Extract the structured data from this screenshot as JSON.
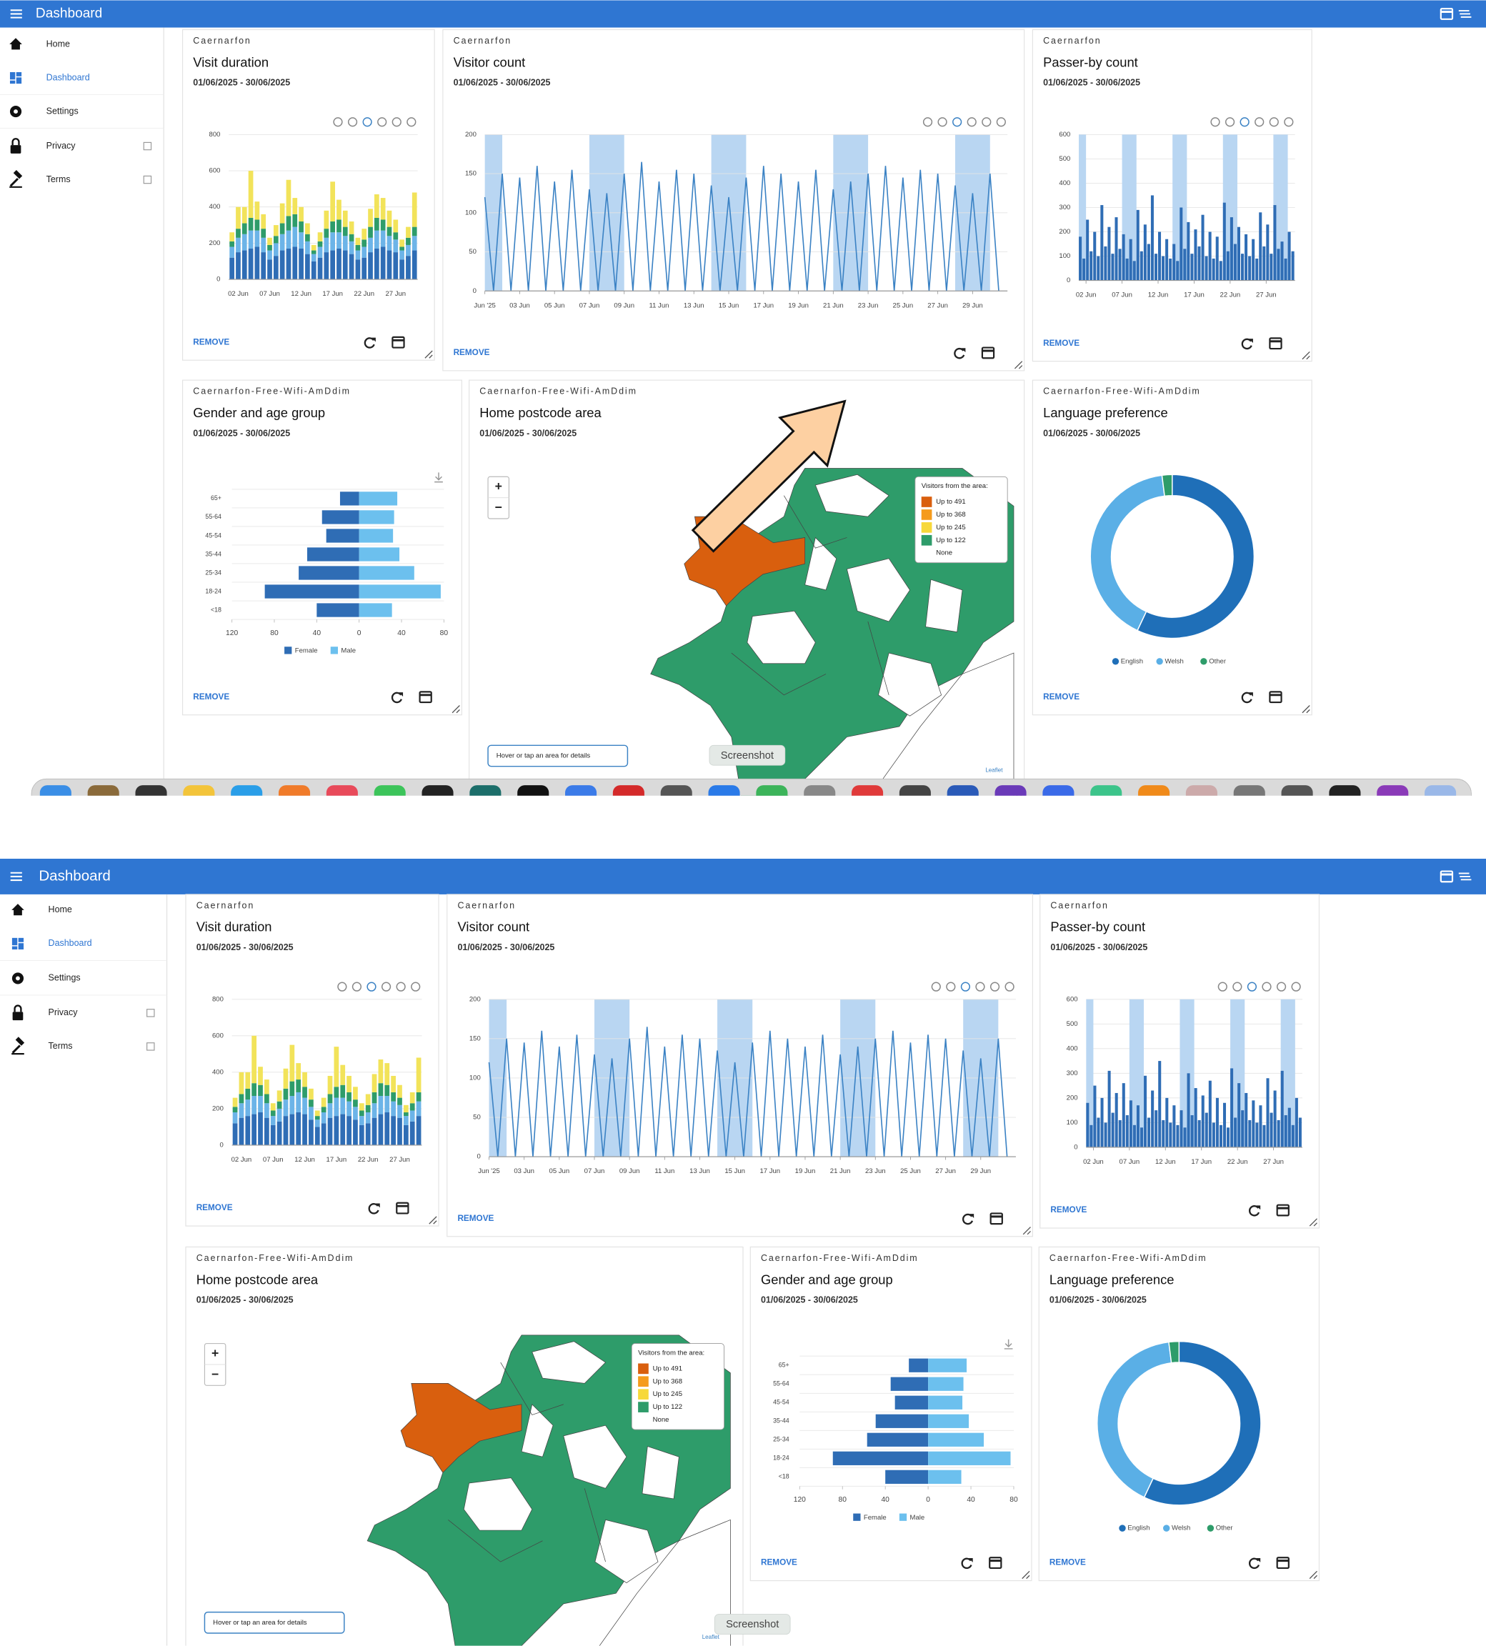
{
  "app_bar": {
    "title": "Dashboard"
  },
  "nav": [
    {
      "label": "Home"
    },
    {
      "label": "Dashboard",
      "active": true
    },
    {
      "label": "Settings"
    },
    {
      "label": "Privacy",
      "external": true
    },
    {
      "label": "Terms",
      "external": true
    }
  ],
  "screenshot_label": "Screenshot",
  "widgets": [
    {
      "org": "Caernarfon",
      "title": "Visit duration",
      "dates": "01/06/2025 - 30/06/2025",
      "remove": "REMOVE",
      "chart_data": {
        "type": "bar",
        "stacked": true,
        "categories": [
          null,
          "02 Jun",
          null,
          null,
          null,
          null,
          "07 Jun",
          null,
          null,
          null,
          null,
          "12 Jun",
          null,
          null,
          null,
          null,
          "17 Jun",
          null,
          null,
          null,
          null,
          "22 Jun",
          null,
          null,
          null,
          null,
          "27 Jun",
          null,
          null,
          null
        ],
        "series": [
          {
            "color": "#2f6db5",
            "values": [
              120,
              150,
              160,
              170,
              180,
              150,
              110,
              130,
              160,
              170,
              180,
              170,
              140,
              100,
              120,
              150,
              160,
              170,
              160,
              140,
              110,
              120,
              150,
              170,
              180,
              160,
              150,
              110,
              130,
              160
            ]
          },
          {
            "color": "#6cb4e8",
            "values": [
              60,
              80,
              90,
              100,
              90,
              80,
              50,
              70,
              90,
              100,
              110,
              90,
              70,
              40,
              60,
              80,
              100,
              90,
              80,
              70,
              50,
              60,
              80,
              100,
              90,
              80,
              70,
              50,
              60,
              80
            ]
          },
          {
            "color": "#2e9c6a",
            "values": [
              30,
              50,
              60,
              70,
              60,
              50,
              30,
              40,
              60,
              80,
              70,
              60,
              40,
              20,
              30,
              50,
              60,
              70,
              50,
              40,
              30,
              40,
              60,
              70,
              60,
              50,
              40,
              20,
              40,
              50
            ]
          },
          {
            "color": "#f2e35a",
            "values": [
              50,
              120,
              90,
              260,
              100,
              80,
              40,
              60,
              110,
              200,
              90,
              80,
              60,
              30,
              50,
              100,
              220,
              110,
              90,
              70,
              40,
              60,
              100,
              130,
              120,
              90,
              70,
              40,
              60,
              190
            ]
          }
        ],
        "ylim": [
          0,
          800
        ],
        "yticks": [
          0,
          200,
          400,
          600,
          800
        ],
        "grid": true
      }
    },
    {
      "org": "Caernarfon",
      "title": "Visitor count",
      "dates": "01/06/2025 - 30/06/2025",
      "remove": "REMOVE",
      "chart_data": {
        "type": "line",
        "color": "#3b82c4",
        "band_color": "#b9d6f2",
        "x": [
          1,
          1.5,
          2,
          2.5,
          3,
          3.5,
          4,
          4.5,
          5,
          5.5,
          6,
          6.5,
          7,
          7.5,
          8,
          8.5,
          9,
          9.5,
          10,
          10.5,
          11,
          11.5,
          12,
          12.5,
          13,
          13.5,
          14,
          14.5,
          15,
          15.5,
          16,
          16.5,
          17,
          17.5,
          18,
          18.5,
          19,
          19.5,
          20,
          20.5,
          21,
          21.5,
          22,
          22.5,
          23,
          23.5,
          24,
          24.5,
          25,
          25.5,
          26,
          26.5,
          27,
          27.5,
          28,
          28.5,
          29,
          29.5,
          30,
          30.5
        ],
        "values": [
          120,
          0,
          150,
          0,
          145,
          0,
          160,
          0,
          140,
          0,
          155,
          0,
          130,
          0,
          125,
          0,
          150,
          0,
          165,
          0,
          140,
          0,
          155,
          0,
          150,
          0,
          135,
          0,
          120,
          0,
          145,
          0,
          160,
          0,
          150,
          0,
          140,
          0,
          155,
          0,
          130,
          0,
          140,
          0,
          150,
          0,
          160,
          0,
          145,
          0,
          155,
          0,
          150,
          0,
          135,
          0,
          125,
          0,
          150,
          0
        ],
        "bands": [
          [
            1,
            2
          ],
          [
            7,
            9
          ],
          [
            14,
            16
          ],
          [
            21,
            23
          ],
          [
            28,
            30
          ]
        ],
        "xlim": [
          1,
          31
        ],
        "xticks": [
          {
            "value": 1,
            "label": "Jun '25"
          },
          {
            "value": 3,
            "label": "03 Jun"
          },
          {
            "value": 5,
            "label": "05 Jun"
          },
          {
            "value": 7,
            "label": "07 Jun"
          },
          {
            "value": 9,
            "label": "09 Jun"
          },
          {
            "value": 11,
            "label": "11 Jun"
          },
          {
            "value": 13,
            "label": "13 Jun"
          },
          {
            "value": 15,
            "label": "15 Jun"
          },
          {
            "value": 17,
            "label": "17 Jun"
          },
          {
            "value": 19,
            "label": "19 Jun"
          },
          {
            "value": 21,
            "label": "21 Jun"
          },
          {
            "value": 23,
            "label": "23 Jun"
          },
          {
            "value": 25,
            "label": "25 Jun"
          },
          {
            "value": 27,
            "label": "27 Jun"
          },
          {
            "value": 29,
            "label": "29 Jun"
          }
        ],
        "ylim": [
          0,
          200
        ],
        "yticks": [
          0,
          50,
          100,
          150,
          200
        ],
        "grid": true
      }
    },
    {
      "org": "Caernarfon",
      "title": "Passer-by count",
      "dates": "01/06/2025 - 30/06/2025",
      "remove": "REMOVE",
      "chart_data": {
        "type": "bar",
        "color": "#2f6db5",
        "band_color": "#b9d6f2",
        "x": [
          1,
          1.5,
          2,
          2.5,
          3,
          3.5,
          4,
          4.5,
          5,
          5.5,
          6,
          6.5,
          7,
          7.5,
          8,
          8.5,
          9,
          9.5,
          10,
          10.5,
          11,
          11.5,
          12,
          12.5,
          13,
          13.5,
          14,
          14.5,
          15,
          15.5,
          16,
          16.5,
          17,
          17.5,
          18,
          18.5,
          19,
          19.5,
          20,
          20.5,
          21,
          21.5,
          22,
          22.5,
          23,
          23.5,
          24,
          24.5,
          25,
          25.5,
          26,
          26.5,
          27,
          27.5,
          28,
          28.5,
          29,
          29.5,
          30,
          30.5
        ],
        "values": [
          180,
          90,
          250,
          120,
          200,
          100,
          310,
          140,
          220,
          110,
          260,
          130,
          190,
          90,
          170,
          80,
          290,
          120,
          230,
          150,
          350,
          110,
          200,
          100,
          170,
          90,
          150,
          80,
          300,
          130,
          240,
          110,
          210,
          140,
          270,
          100,
          200,
          90,
          180,
          80,
          320,
          120,
          260,
          150,
          220,
          110,
          190,
          100,
          170,
          90,
          280,
          140,
          230,
          110,
          310,
          130,
          160,
          90,
          200,
          120
        ],
        "bands": [
          [
            1,
            2
          ],
          [
            7,
            9
          ],
          [
            14,
            16
          ],
          [
            21,
            23
          ],
          [
            28,
            30
          ]
        ],
        "xlim": [
          1,
          31
        ],
        "xticks": [
          {
            "value": 2,
            "label": "02 Jun"
          },
          {
            "value": 7,
            "label": "07 Jun"
          },
          {
            "value": 12,
            "label": "12 Jun"
          },
          {
            "value": 17,
            "label": "17 Jun"
          },
          {
            "value": 22,
            "label": "22 Jun"
          },
          {
            "value": 27,
            "label": "27 Jun"
          }
        ],
        "ylim": [
          0,
          600
        ],
        "yticks": [
          0,
          100,
          200,
          300,
          400,
          500,
          600
        ],
        "grid": true
      }
    },
    {
      "org": "Caernarfon-Free-Wifi-AmDdim",
      "title": "Gender and age group",
      "dates": "01/06/2025 - 30/06/2025",
      "remove": "REMOVE",
      "chart_data": {
        "type": "bar",
        "orientation": "horizontal",
        "categories": [
          "65+",
          "55-64",
          "45-54",
          "35-44",
          "25-34",
          "18-24",
          "<18"
        ],
        "series": [
          {
            "name": "Female",
            "color": "#2f6db5",
            "values": [
              -18,
              -35,
              -31,
              -49,
              -57,
              -89,
              -40
            ]
          },
          {
            "name": "Male",
            "color": "#6cc0ee",
            "values": [
              36,
              33,
              32,
              38,
              52,
              77,
              31
            ]
          }
        ],
        "xlim": [
          -120,
          80
        ],
        "xticks": [
          {
            "value": -120,
            "label": "120"
          },
          {
            "value": -80,
            "label": "80"
          },
          {
            "value": -40,
            "label": "40"
          },
          0,
          40,
          80
        ]
      }
    },
    {
      "org": "Caernarfon-Free-Wifi-AmDdim",
      "title": "Home postcode area",
      "dates": "01/06/2025 - 30/06/2025",
      "chart_data": {
        "type": "map",
        "legend_title": "Visitors from the area:",
        "legend": [
          {
            "label": "Up to 491",
            "color": "#d95f0e"
          },
          {
            "label": "Up to 368",
            "color": "#f59b1c"
          },
          {
            "label": "Up to 245",
            "color": "#f7d83a"
          },
          {
            "label": "Up to 122",
            "color": "#2e9c6a"
          },
          {
            "label": "None"
          }
        ],
        "zoom": [
          "+",
          "−"
        ],
        "hint": "Hover or tap an area for details",
        "attribution": "Leaflet"
      }
    },
    {
      "org": "Caernarfon-Free-Wifi-AmDdim",
      "title": "Language preference",
      "dates": "01/06/2025 - 30/06/2025",
      "remove": "REMOVE",
      "chart_data": {
        "type": "donut",
        "categories": [
          "English",
          "Welsh",
          "Other"
        ],
        "values": [
          57,
          41,
          2
        ],
        "colors": [
          "#1f6fb8",
          "#5aafe6",
          "#2e9c6a"
        ]
      }
    }
  ]
}
